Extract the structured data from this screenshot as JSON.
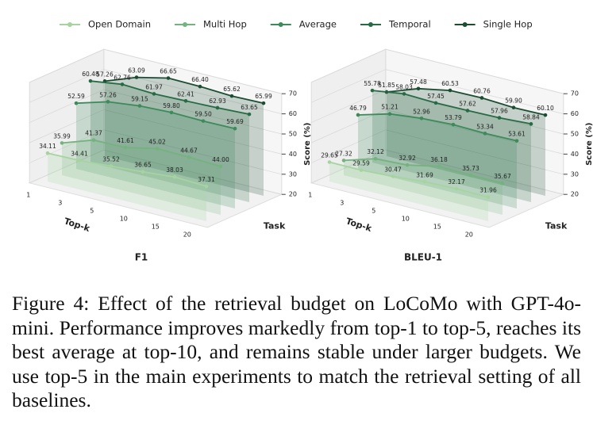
{
  "chart_data": [
    {
      "type": "line3d",
      "title": "F1",
      "xlabel": "Top-k",
      "ylabel": "Task",
      "zlabel": "Score (%)",
      "categories": [
        "1",
        "3",
        "5",
        "10",
        "15",
        "20"
      ],
      "zlim": [
        20,
        70
      ],
      "zticks": [
        20,
        30,
        40,
        50,
        60,
        70
      ],
      "series": [
        {
          "name": "Open Domain",
          "color": "#a6d49f",
          "values": [
            34.11,
            34.41,
            35.52,
            36.65,
            38.03,
            37.31
          ],
          "value_labels": [
            "34.11",
            "34.41",
            "35.52",
            "36.65",
            "38.03",
            "37.31"
          ]
        },
        {
          "name": "Multi Hop",
          "color": "#74b27e",
          "values": [
            35.99,
            41.37,
            41.61,
            45.02,
            44.67,
            44.0
          ],
          "value_labels": [
            "35.99",
            "41.37",
            "41.61",
            "45.02",
            "44.67",
            "44.00"
          ]
        },
        {
          "name": "Average",
          "color": "#3d8a5a",
          "values": [
            52.59,
            57.26,
            59.15,
            59.8,
            59.5,
            59.69
          ],
          "value_labels": [
            "52.59",
            "57.26",
            "59.15",
            "59.80",
            "59.50",
            "59.69"
          ]
        },
        {
          "name": "Temporal",
          "color": "#276b45",
          "values": [
            60.48,
            62.76,
            61.97,
            62.41,
            62.93,
            63.65
          ],
          "value_labels": [
            "60.48",
            "62.76",
            "61.97",
            "62.41",
            "62.93",
            "63.65"
          ]
        },
        {
          "name": "Single Hop",
          "color": "#1b4d33",
          "values": [
            57.26,
            63.09,
            66.65,
            66.4,
            65.62,
            65.99
          ],
          "value_labels": [
            "57.26",
            "63.09",
            "66.65",
            "66.40",
            "65.62",
            "65.99"
          ]
        }
      ]
    },
    {
      "type": "line3d",
      "title": "BLEU-1",
      "xlabel": "Top-k",
      "ylabel": "Task",
      "zlabel": "Score (%)",
      "categories": [
        "1",
        "3",
        "5",
        "10",
        "15",
        "20"
      ],
      "zlim": [
        20,
        70
      ],
      "zticks": [
        20,
        30,
        40,
        50,
        60,
        70
      ],
      "series": [
        {
          "values": [
            29.65,
            29.59,
            30.47,
            31.69,
            32.17,
            31.96
          ],
          "value_labels": [
            "29.65",
            "29.59",
            "30.47",
            "31.69",
            "32.17",
            "31.96"
          ]
        },
        {
          "values": [
            27.32,
            32.12,
            32.92,
            36.18,
            35.73,
            35.67
          ],
          "value_labels": [
            "27.32",
            "32.12",
            "32.92",
            "36.18",
            "35.73",
            "35.67"
          ]
        },
        {
          "values": [
            46.79,
            51.21,
            52.96,
            53.79,
            53.34,
            53.61
          ],
          "value_labels": [
            "46.79",
            "51.21",
            "52.96",
            "53.79",
            "53.34",
            "53.61"
          ]
        },
        {
          "values": [
            55.78,
            58.03,
            57.45,
            57.62,
            57.96,
            58.84
          ],
          "value_labels": [
            "55.78",
            "58.03",
            "57.45",
            "57.62",
            "57.96",
            "58.84"
          ]
        },
        {
          "values": [
            51.85,
            57.48,
            60.53,
            60.76,
            59.9,
            60.1
          ],
          "value_labels": [
            "51.85",
            "57.48",
            "60.53",
            "60.76",
            "59.90",
            "60.10"
          ]
        }
      ]
    }
  ],
  "caption": "Figure 4: Effect of the retrieval budget on LoCoMo with GPT-4o-mini. Performance improves markedly from top-1 to top-5, reaches its best average at top-10, and remains stable under larger budgets. We use top-5 in the main experiments to match the retrieval setting of all baselines."
}
